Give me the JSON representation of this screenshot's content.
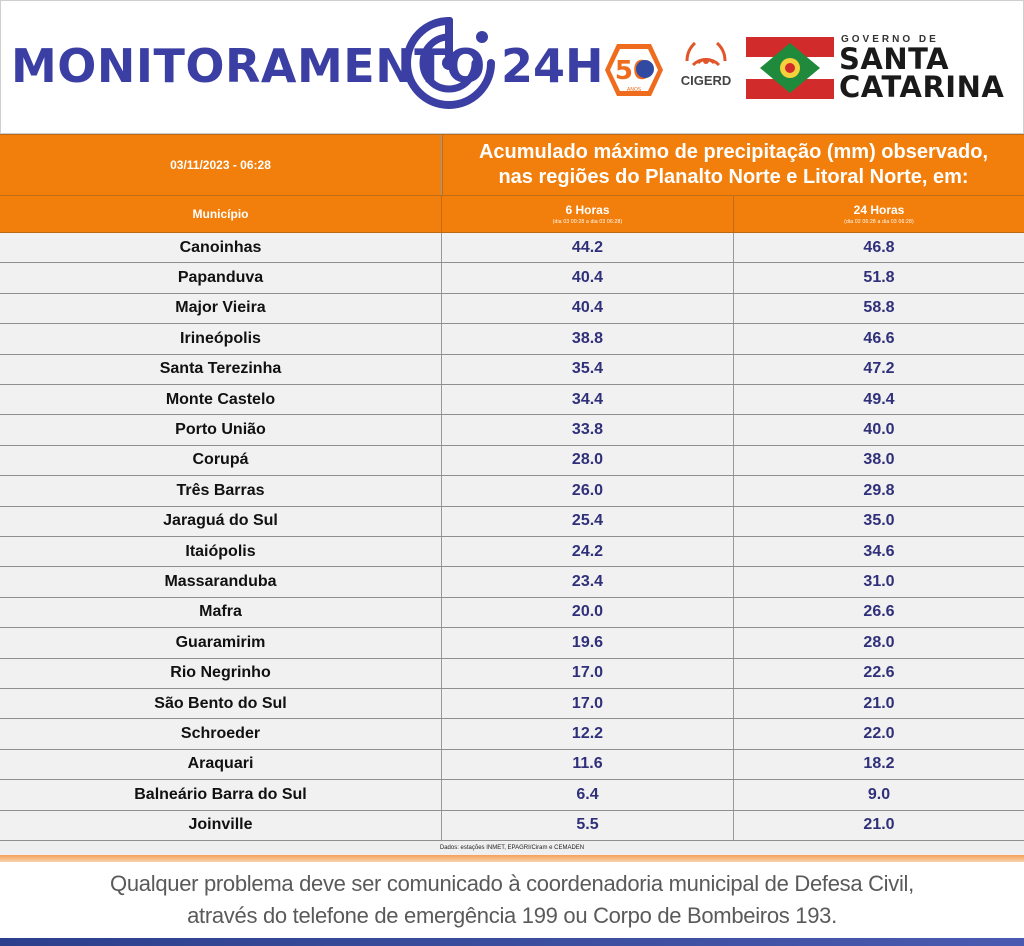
{
  "header": {
    "brand_left": "MONITORAMENTO",
    "brand_right": "24H",
    "badge_50_number": "50",
    "badge_50_sub": "ANOS",
    "cigerd_label": "CIGERD",
    "gov_small": "GOVERNO DE",
    "gov_line1": "SANTA",
    "gov_line2": "CATARINA"
  },
  "table": {
    "datetime": "03/11/2023 - 06:28",
    "title_line1": "Acumulado máximo de precipitação (mm) observado,",
    "title_line2": "nas regiões do Planalto Norte e Litoral Norte, em:",
    "col_municipio": "Município",
    "col_6h": "6 Horas",
    "col_6h_sub": "(dia 03 00:28 a dia 03 06:28)",
    "col_24h": "24 Horas",
    "col_24h_sub": "(dia 02 06:28 a dia 03 06:28)",
    "rows": [
      {
        "municipio": "Canoinhas",
        "h6": "44.2",
        "h24": "46.8"
      },
      {
        "municipio": "Papanduva",
        "h6": "40.4",
        "h24": "51.8"
      },
      {
        "municipio": "Major Vieira",
        "h6": "40.4",
        "h24": "58.8"
      },
      {
        "municipio": "Irineópolis",
        "h6": "38.8",
        "h24": "46.6"
      },
      {
        "municipio": "Santa Terezinha",
        "h6": "35.4",
        "h24": "47.2"
      },
      {
        "municipio": "Monte Castelo",
        "h6": "34.4",
        "h24": "49.4"
      },
      {
        "municipio": "Porto União",
        "h6": "33.8",
        "h24": "40.0"
      },
      {
        "municipio": "Corupá",
        "h6": "28.0",
        "h24": "38.0"
      },
      {
        "municipio": "Três Barras",
        "h6": "26.0",
        "h24": "29.8"
      },
      {
        "municipio": "Jaraguá do Sul",
        "h6": "25.4",
        "h24": "35.0"
      },
      {
        "municipio": "Itaiópolis",
        "h6": "24.2",
        "h24": "34.6"
      },
      {
        "municipio": "Massaranduba",
        "h6": "23.4",
        "h24": "31.0"
      },
      {
        "municipio": "Mafra",
        "h6": "20.0",
        "h24": "26.6"
      },
      {
        "municipio": "Guaramirim",
        "h6": "19.6",
        "h24": "28.0"
      },
      {
        "municipio": "Rio Negrinho",
        "h6": "17.0",
        "h24": "22.6"
      },
      {
        "municipio": "São Bento do Sul",
        "h6": "17.0",
        "h24": "21.0"
      },
      {
        "municipio": "Schroeder",
        "h6": "12.2",
        "h24": "22.0"
      },
      {
        "municipio": "Araquari",
        "h6": "11.6",
        "h24": "18.2"
      },
      {
        "municipio": "Balneário Barra do Sul",
        "h6": "6.4",
        "h24": "9.0"
      },
      {
        "municipio": "Joinville",
        "h6": "5.5",
        "h24": "21.0"
      }
    ],
    "source": "Dados: estações INMET, EPAGRI/Ciram e CEMADEN"
  },
  "footer": {
    "line1": "Qualquer problema deve ser comunicado à coordenadoria municipal de Defesa Civil,",
    "line2": "através do telefone de emergência 199 ou Corpo de Bombeiros 193."
  },
  "colors": {
    "brand_blue": "#3b3fa3",
    "header_orange": "#f27f0c",
    "value_blue": "#30307a",
    "flag_red": "#d22b2b",
    "flag_green": "#1f8a3b"
  },
  "icons": [
    "signal-target-icon",
    "fifty-years-badge-icon",
    "cigerd-signal-icon",
    "santa-catarina-flag-icon"
  ]
}
